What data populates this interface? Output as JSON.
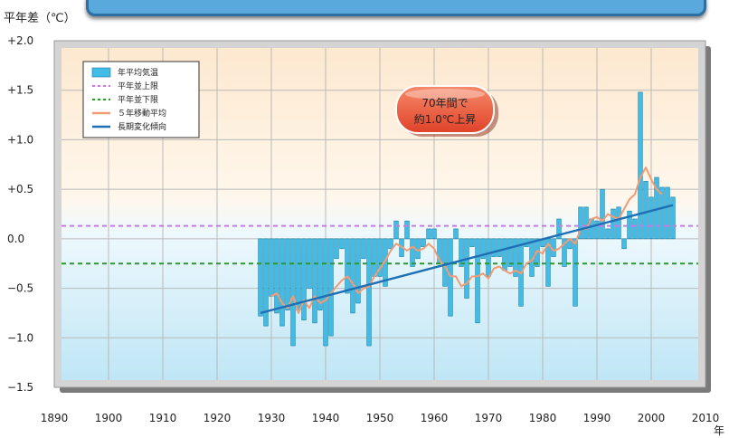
{
  "y_unit_label": "平年差（℃）",
  "x_unit_label": "年",
  "annotation": {
    "line1": "70年間で",
    "line2": "約1.0℃上昇"
  },
  "colors": {
    "bar": "#40bce6",
    "bar_stroke": "#1a7fa6",
    "moving_avg": "#f39b73",
    "trend": "#1f6fb5",
    "upper_normal": "#c77be0",
    "lower_normal": "#2a9a2a",
    "annotation_bg": "#f05a3c"
  },
  "chart_data": {
    "type": "bar",
    "xlim": [
      1890,
      2010
    ],
    "ylim": [
      -1.5,
      2.0
    ],
    "x_ticks": [
      1890,
      1900,
      1910,
      1920,
      1930,
      1940,
      1950,
      1960,
      1970,
      1980,
      1990,
      2000,
      2010
    ],
    "y_ticks": [
      {
        "value": 2.0,
        "label": "+2.0"
      },
      {
        "value": 1.5,
        "label": "+1.5"
      },
      {
        "value": 1.0,
        "label": "+1.0"
      },
      {
        "value": 0.5,
        "label": "+0.5"
      },
      {
        "value": 0.0,
        "label": "0.0"
      },
      {
        "value": -0.5,
        "label": "−0.5"
      },
      {
        "value": -1.0,
        "label": "−1.0"
      },
      {
        "value": -1.5,
        "label": "−1.5"
      }
    ],
    "grid": true,
    "legend": {
      "placement": "top-left",
      "items": [
        "年平均気温",
        "平年並上限",
        "平年並下限",
        "５年移動平均",
        "長期変化傾向"
      ]
    },
    "series": [
      {
        "name": "年平均気温",
        "kind": "bar",
        "x": [
          1928,
          1929,
          1930,
          1931,
          1932,
          1933,
          1934,
          1935,
          1936,
          1937,
          1938,
          1939,
          1940,
          1941,
          1942,
          1943,
          1944,
          1945,
          1946,
          1947,
          1948,
          1949,
          1950,
          1951,
          1952,
          1953,
          1954,
          1955,
          1956,
          1957,
          1958,
          1959,
          1960,
          1961,
          1962,
          1963,
          1964,
          1965,
          1966,
          1967,
          1968,
          1969,
          1970,
          1971,
          1972,
          1973,
          1974,
          1975,
          1976,
          1977,
          1978,
          1979,
          1980,
          1981,
          1982,
          1983,
          1984,
          1985,
          1986,
          1987,
          1988,
          1989,
          1990,
          1991,
          1992,
          1993,
          1994,
          1995,
          1996,
          1997,
          1998,
          1999,
          2000,
          2001,
          2002,
          2003,
          2004
        ],
        "values": [
          -0.78,
          -0.88,
          -0.58,
          -0.75,
          -0.88,
          -0.72,
          -1.08,
          -0.72,
          -0.82,
          -0.5,
          -0.85,
          -0.72,
          -1.08,
          -0.98,
          -0.2,
          -0.1,
          -0.55,
          -0.75,
          -0.65,
          -0.2,
          -1.08,
          -0.38,
          -0.38,
          -0.48,
          -0.1,
          0.18,
          -0.18,
          0.18,
          -0.28,
          -0.2,
          -0.08,
          0.1,
          0.1,
          -0.25,
          -0.48,
          -0.78,
          0.1,
          -0.28,
          -0.6,
          -0.08,
          -0.85,
          -0.2,
          -0.38,
          -0.18,
          -0.18,
          -0.32,
          -0.28,
          -0.38,
          -0.68,
          -0.08,
          -0.38,
          -0.28,
          -0.08,
          -0.48,
          -0.18,
          0.2,
          -0.28,
          -0.1,
          -0.68,
          0.32,
          0.32,
          0.2,
          0.18,
          0.5,
          0.1,
          0.3,
          0.32,
          -0.1,
          0.28,
          0.2,
          1.48,
          0.58,
          0.42,
          0.62,
          0.52,
          0.52,
          0.42
        ]
      },
      {
        "name": "５年移動平均",
        "kind": "line",
        "x": [
          1930,
          1931,
          1932,
          1933,
          1934,
          1935,
          1936,
          1937,
          1938,
          1939,
          1940,
          1941,
          1942,
          1943,
          1944,
          1945,
          1946,
          1947,
          1948,
          1949,
          1950,
          1951,
          1952,
          1953,
          1954,
          1955,
          1956,
          1957,
          1958,
          1959,
          1960,
          1961,
          1962,
          1963,
          1964,
          1965,
          1966,
          1967,
          1968,
          1969,
          1970,
          1971,
          1972,
          1973,
          1974,
          1975,
          1976,
          1977,
          1978,
          1979,
          1980,
          1981,
          1982,
          1983,
          1984,
          1985,
          1986,
          1987,
          1988,
          1989,
          1990,
          1991,
          1992,
          1993,
          1994,
          1995,
          1996,
          1997,
          1998,
          1999,
          2000,
          2001,
          2002
        ],
        "values": [
          -0.58,
          -0.55,
          -0.65,
          -0.7,
          -0.58,
          -0.75,
          -0.62,
          -0.7,
          -0.58,
          -0.65,
          -0.62,
          -0.55,
          -0.48,
          -0.42,
          -0.38,
          -0.45,
          -0.55,
          -0.5,
          -0.48,
          -0.38,
          -0.3,
          -0.22,
          -0.12,
          -0.05,
          -0.08,
          -0.12,
          -0.08,
          -0.12,
          -0.1,
          -0.05,
          -0.1,
          -0.22,
          -0.28,
          -0.38,
          -0.38,
          -0.48,
          -0.45,
          -0.38,
          -0.38,
          -0.35,
          -0.4,
          -0.3,
          -0.28,
          -0.32,
          -0.35,
          -0.32,
          -0.35,
          -0.25,
          -0.22,
          -0.12,
          -0.15,
          -0.05,
          -0.12,
          -0.1,
          -0.05,
          0.0,
          -0.05,
          0.1,
          0.1,
          0.2,
          0.22,
          0.18,
          0.25,
          0.22,
          0.2,
          0.3,
          0.4,
          0.45,
          0.62,
          0.72,
          0.6,
          0.5,
          0.45
        ]
      },
      {
        "name": "長期変化傾向",
        "kind": "line",
        "x": [
          1928,
          2004
        ],
        "values": [
          -0.75,
          0.34
        ]
      },
      {
        "name": "平年並上限",
        "kind": "hline",
        "value": 0.13
      },
      {
        "name": "平年並下限",
        "kind": "hline",
        "value": -0.25
      }
    ]
  }
}
